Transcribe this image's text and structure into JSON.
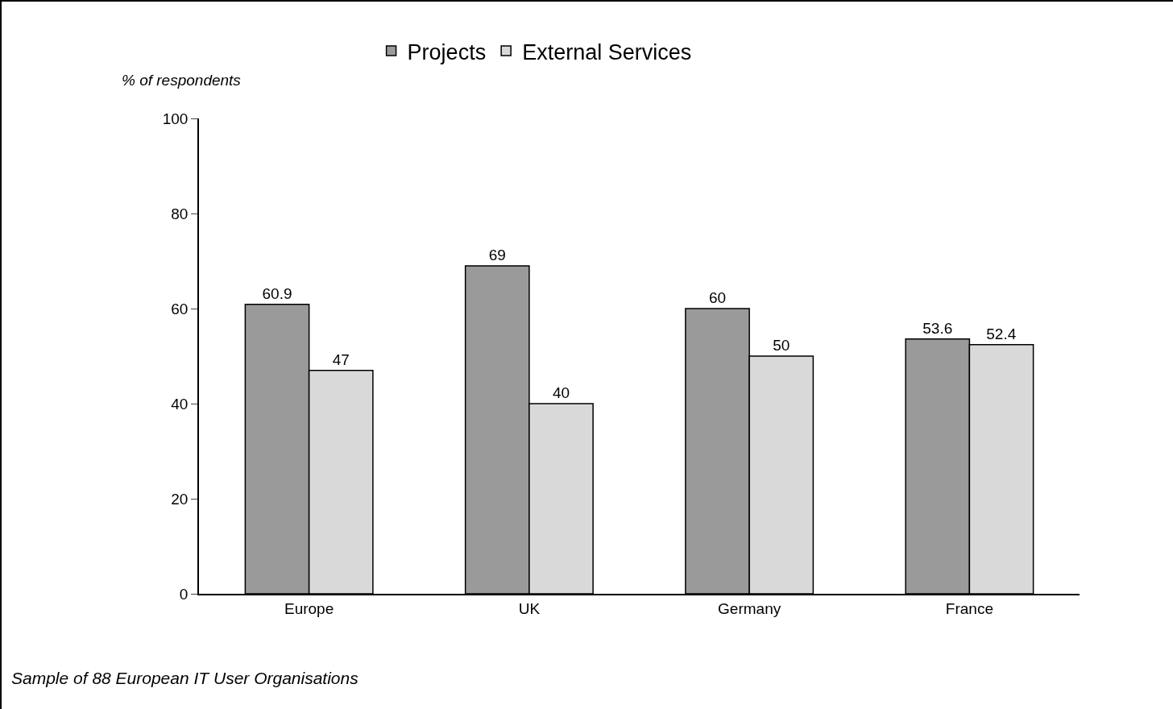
{
  "chart_data": {
    "type": "bar",
    "ylabel": "% of respondents",
    "categories": [
      "Europe",
      "UK",
      "Germany",
      "France"
    ],
    "series": [
      {
        "name": "Projects",
        "color": "#9a9a9a",
        "values": [
          60.9,
          69,
          60,
          53.6
        ]
      },
      {
        "name": "External Services",
        "color": "#d9d9d9",
        "values": [
          47,
          40,
          50,
          52.4
        ]
      }
    ],
    "ylim": [
      0,
      100
    ],
    "yticks": [
      0,
      20,
      40,
      60,
      80,
      100
    ],
    "grid": false,
    "legend": "top",
    "data_labels": true,
    "annotations": [
      "Sample of 88 European IT User Organisations"
    ]
  }
}
